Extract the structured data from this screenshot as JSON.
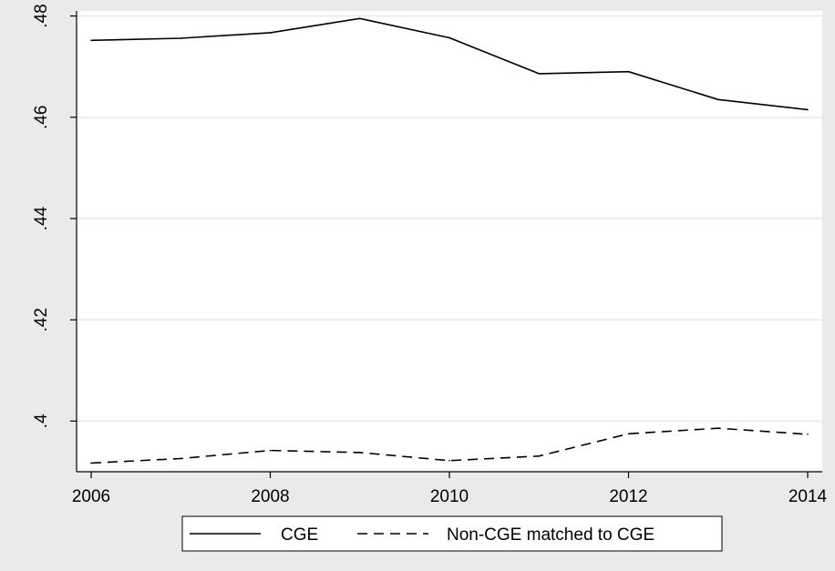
{
  "chart_data": {
    "type": "line",
    "x": [
      2006,
      2007,
      2008,
      2009,
      2010,
      2011,
      2012,
      2013,
      2014
    ],
    "series": [
      {
        "name": "CGE",
        "values": [
          0.4752,
          0.4756,
          0.4767,
          0.4795,
          0.4757,
          0.4686,
          0.469,
          0.4635,
          0.4615
        ],
        "dash": "solid"
      },
      {
        "name": "Non-CGE matched to CGE",
        "values": [
          0.3917,
          0.3926,
          0.3942,
          0.3938,
          0.3922,
          0.3931,
          0.3975,
          0.3986,
          0.3974
        ],
        "dash": "dashed"
      }
    ],
    "x_ticks": [
      2006,
      2008,
      2010,
      2012,
      2014
    ],
    "x_tick_labels": [
      "2006",
      "2008",
      "2010",
      "2012",
      "2014"
    ],
    "y_ticks": [
      0.4,
      0.42,
      0.44,
      0.46,
      0.48
    ],
    "y_tick_labels": [
      ".4",
      ".42",
      ".44",
      ".46",
      ".48"
    ],
    "xlim": [
      2006,
      2014
    ],
    "ylim": [
      0.39,
      0.481
    ],
    "grid": true,
    "legend_position": "bottom",
    "colors": {
      "outer_background": "#eaeaea",
      "plot_background": "#ffffff",
      "gridline": "#eaeaea",
      "line": "#000000"
    }
  }
}
